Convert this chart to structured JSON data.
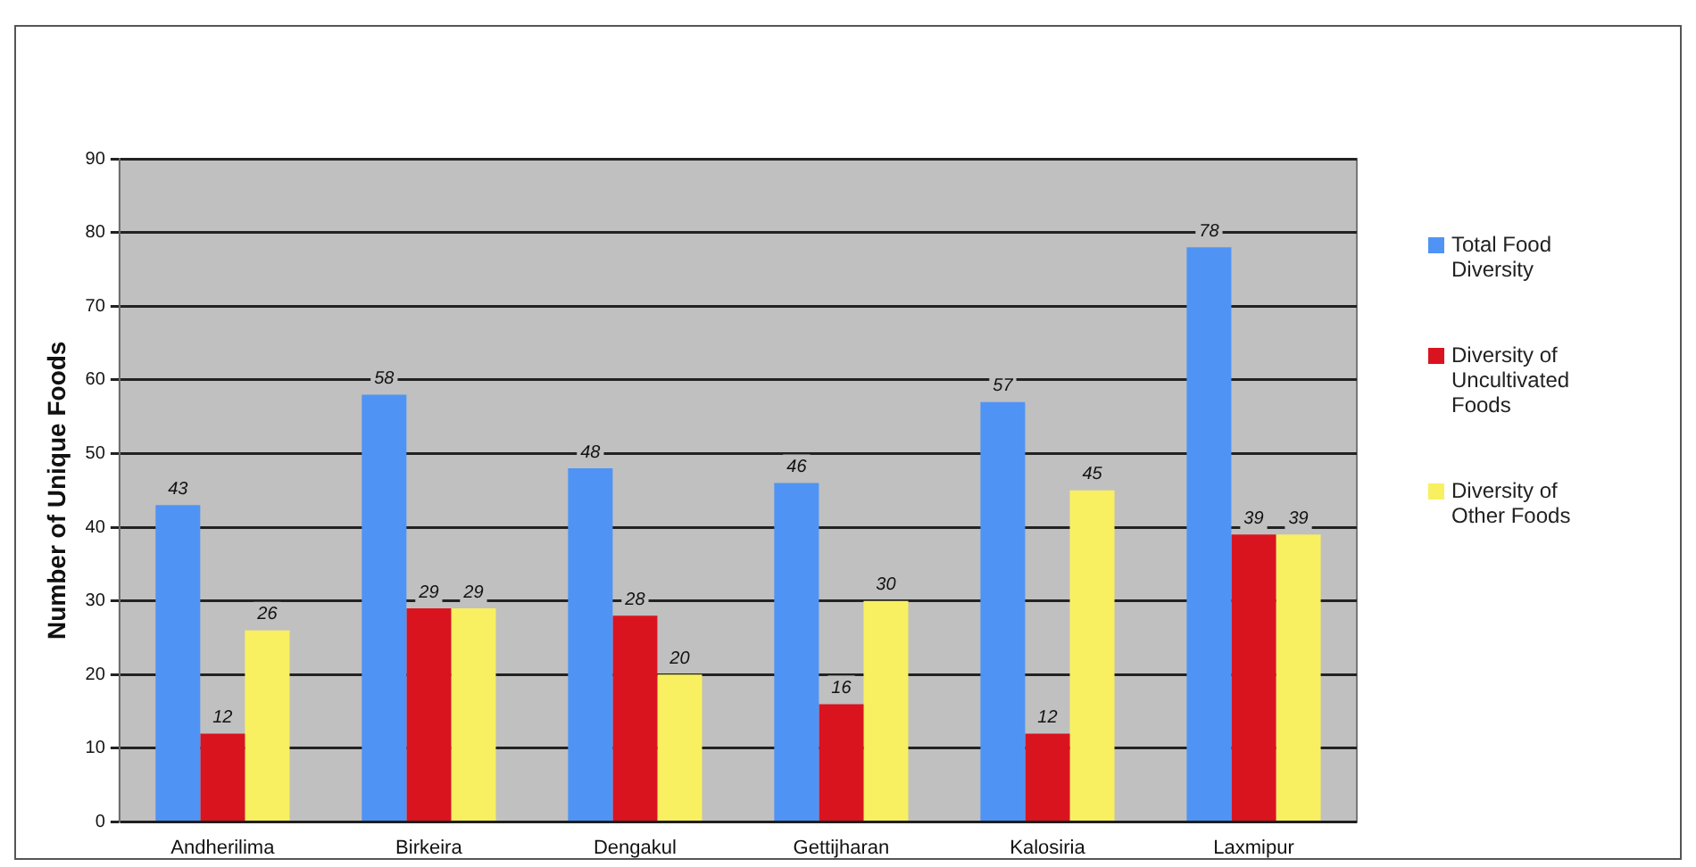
{
  "chart_data": {
    "type": "bar",
    "ylabel": "Number of Unique Foods",
    "categories": [
      "Andherilima",
      "Birkeira",
      "Dengakul",
      "Gettijharan",
      "Kalosiria",
      "Laxmipur"
    ],
    "series": [
      {
        "name": "Total Food Diversity",
        "color": "#4f94f5",
        "values": [
          43,
          58,
          48,
          46,
          57,
          78
        ]
      },
      {
        "name": "Diversity of Uncultivated Foods",
        "color": "#d9141f",
        "values": [
          12,
          29,
          28,
          16,
          12,
          39
        ]
      },
      {
        "name": "Diversity of Other Foods",
        "color": "#f8f060",
        "values": [
          26,
          29,
          20,
          30,
          45,
          39
        ]
      }
    ],
    "ylim": [
      0,
      90
    ],
    "yticks": [
      0,
      10,
      20,
      30,
      40,
      50,
      60,
      70,
      80,
      90
    ],
    "grid": "y",
    "legend": "right",
    "data_labels": true
  }
}
